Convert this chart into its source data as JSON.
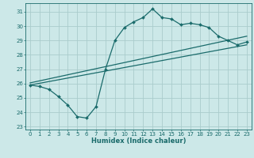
{
  "xlabel": "Humidex (Indice chaleur)",
  "ylabel": "",
  "bg_color": "#cce8e8",
  "grid_color": "#aacccc",
  "line_color": "#1a6b6b",
  "xlim": [
    -0.5,
    23.5
  ],
  "ylim": [
    22.8,
    31.6
  ],
  "yticks": [
    23,
    24,
    25,
    26,
    27,
    28,
    29,
    30,
    31
  ],
  "xticks": [
    0,
    1,
    2,
    3,
    4,
    5,
    6,
    7,
    8,
    9,
    10,
    11,
    12,
    13,
    14,
    15,
    16,
    17,
    18,
    19,
    20,
    21,
    22,
    23
  ],
  "line1_x": [
    0,
    1,
    2,
    3,
    4,
    5,
    6,
    7,
    8,
    9,
    10,
    11,
    12,
    13,
    14,
    15,
    16,
    17,
    18,
    19,
    20,
    21,
    22,
    23
  ],
  "line1_y": [
    25.9,
    25.8,
    25.6,
    25.1,
    24.5,
    23.7,
    23.6,
    24.4,
    27.0,
    29.0,
    29.9,
    30.3,
    30.6,
    31.2,
    30.6,
    30.5,
    30.1,
    30.2,
    30.1,
    29.9,
    29.3,
    29.0,
    28.7,
    28.9
  ],
  "line2_x": [
    0,
    23
  ],
  "line2_y": [
    25.9,
    28.7
  ],
  "line3_x": [
    0,
    23
  ],
  "line3_y": [
    26.05,
    29.3
  ]
}
